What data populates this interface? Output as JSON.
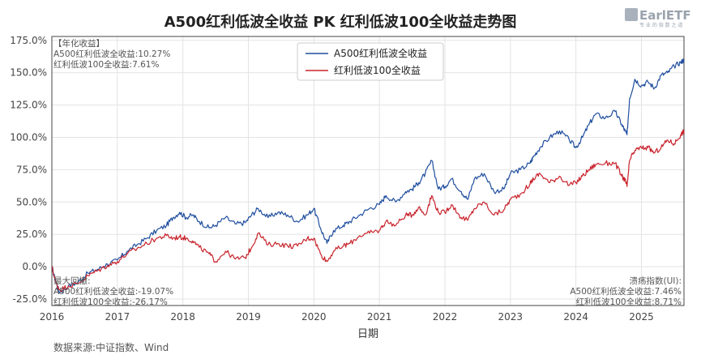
{
  "chart_data": {
    "type": "line",
    "title": "A500红利低波全收益 PK 红利低波100全收益走势图",
    "xlabel": "日期",
    "ylabel": "",
    "x_ticks": [
      "2016",
      "2017",
      "2018",
      "2019",
      "2020",
      "2021",
      "2022",
      "2023",
      "2024",
      "2025"
    ],
    "y_ticks": [
      "-25.0%",
      "0.0%",
      "25.0%",
      "50.0%",
      "75.0%",
      "100.0%",
      "125.0%",
      "150.0%",
      "175.0%"
    ],
    "xlim": [
      2016.0,
      2025.65
    ],
    "ylim": [
      -30,
      178
    ],
    "grid": true,
    "legend_position": "top-center",
    "series": [
      {
        "name": "A500红利低波全收益",
        "color": "#1f4e9e",
        "x": [
          2016.0,
          2016.06,
          2016.12,
          2016.25,
          2016.4,
          2016.55,
          2016.7,
          2016.85,
          2017.0,
          2017.15,
          2017.3,
          2017.45,
          2017.6,
          2017.75,
          2017.85,
          2017.95,
          2018.05,
          2018.15,
          2018.25,
          2018.4,
          2018.5,
          2018.65,
          2018.8,
          2018.95,
          2019.05,
          2019.15,
          2019.3,
          2019.45,
          2019.6,
          2019.75,
          2019.9,
          2020.0,
          2020.1,
          2020.2,
          2020.3,
          2020.45,
          2020.55,
          2020.7,
          2020.85,
          2021.0,
          2021.1,
          2021.25,
          2021.4,
          2021.5,
          2021.6,
          2021.7,
          2021.8,
          2021.9,
          2022.0,
          2022.1,
          2022.25,
          2022.35,
          2022.45,
          2022.6,
          2022.75,
          2022.9,
          2023.0,
          2023.15,
          2023.3,
          2023.35,
          2023.45,
          2023.6,
          2023.75,
          2023.9,
          2024.0,
          2024.1,
          2024.2,
          2024.3,
          2024.45,
          2024.6,
          2024.7,
          2024.75,
          2024.78,
          2024.82,
          2024.9,
          2025.0,
          2025.1,
          2025.2,
          2025.3,
          2025.4,
          2025.5,
          2025.6,
          2025.65
        ],
        "values": [
          0,
          -12,
          -20,
          -15,
          -12,
          -5,
          -2,
          2,
          5,
          12,
          17,
          22,
          28,
          32,
          38,
          42,
          38,
          40,
          35,
          30,
          32,
          38,
          33,
          34,
          40,
          45,
          38,
          42,
          40,
          35,
          40,
          45,
          30,
          18,
          28,
          32,
          35,
          40,
          45,
          48,
          55,
          50,
          58,
          60,
          65,
          72,
          82,
          60,
          62,
          68,
          58,
          52,
          68,
          72,
          58,
          60,
          72,
          75,
          80,
          85,
          92,
          100,
          105,
          98,
          92,
          100,
          110,
          118,
          115,
          120,
          110,
          105,
          102,
          130,
          145,
          140,
          143,
          138,
          148,
          150,
          155,
          158,
          160
        ]
      },
      {
        "name": "红利低波100全收益",
        "color": "#c8232c",
        "x": [
          2016.0,
          2016.06,
          2016.12,
          2016.25,
          2016.4,
          2016.55,
          2016.7,
          2016.85,
          2017.0,
          2017.15,
          2017.3,
          2017.45,
          2017.6,
          2017.75,
          2017.85,
          2017.95,
          2018.05,
          2018.15,
          2018.25,
          2018.4,
          2018.5,
          2018.65,
          2018.8,
          2018.95,
          2019.05,
          2019.15,
          2019.3,
          2019.45,
          2019.6,
          2019.75,
          2019.9,
          2020.0,
          2020.1,
          2020.2,
          2020.3,
          2020.45,
          2020.55,
          2020.7,
          2020.85,
          2021.0,
          2021.1,
          2021.25,
          2021.4,
          2021.5,
          2021.6,
          2021.7,
          2021.8,
          2021.9,
          2022.0,
          2022.1,
          2022.25,
          2022.35,
          2022.45,
          2022.6,
          2022.75,
          2022.9,
          2023.0,
          2023.15,
          2023.3,
          2023.35,
          2023.45,
          2023.6,
          2023.75,
          2023.9,
          2024.0,
          2024.1,
          2024.2,
          2024.3,
          2024.45,
          2024.6,
          2024.7,
          2024.75,
          2024.78,
          2024.82,
          2024.9,
          2025.0,
          2025.1,
          2025.2,
          2025.3,
          2025.4,
          2025.5,
          2025.6,
          2025.65
        ],
        "values": [
          0,
          -12,
          -18,
          -15,
          -13,
          -7,
          -3,
          1,
          4,
          10,
          14,
          18,
          22,
          24,
          22,
          23,
          22,
          20,
          15,
          10,
          4,
          12,
          6,
          7,
          15,
          26,
          17,
          18,
          16,
          16,
          22,
          22,
          10,
          4,
          12,
          16,
          18,
          24,
          26,
          28,
          35,
          32,
          40,
          40,
          46,
          40,
          55,
          42,
          42,
          48,
          38,
          36,
          45,
          50,
          40,
          44,
          52,
          56,
          64,
          68,
          72,
          65,
          70,
          63,
          65,
          70,
          75,
          79,
          80,
          80,
          70,
          67,
          62,
          82,
          90,
          92,
          92,
          88,
          92,
          98,
          95,
          102,
          105
        ]
      }
    ],
    "annotations": {
      "annual_header": "【年化收益】",
      "annual_a500": "A500红利低波全收益:10.27%",
      "annual_hl100": "红利低波100全收益:7.61%",
      "dd_header": "最大回撤:",
      "dd_a500": "A500红利低波全收益:-19.07%",
      "dd_hl100": "红利低波100全收益:-26.17%",
      "ui_header": "溃疡指数(UI):",
      "ui_a500": "A500红利低波全收益:7.46%",
      "ui_hl100": "红利低波100全收益:8.71%"
    },
    "source": "数据来源:中证指数、Wind"
  },
  "logo": {
    "text": "EarlETF",
    "subtext": "专 业 的 指 数 之 道"
  }
}
